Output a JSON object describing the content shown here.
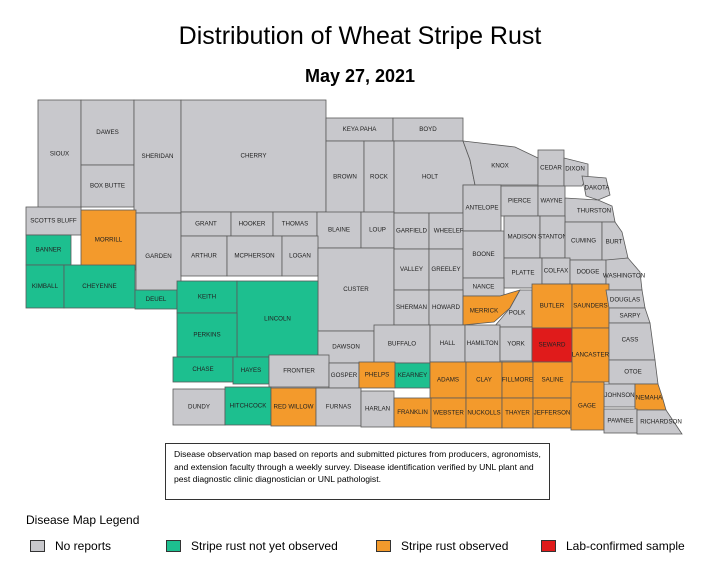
{
  "title": "Distribution of Wheat Stripe Rust",
  "date": "May 27, 2021",
  "note": "Disease observation map based on reports and submitted pictures from producers, agronomists, and extension faculty through a weekly survey. Disease identification verified by UNL plant and pest diagnostic clinic diagnostician or UNL pathologist.",
  "colors": {
    "no_reports": "#c8c8cc",
    "not_observed": "#1dbf8f",
    "observed": "#f39a2c",
    "lab_confirmed": "#e01b1b"
  },
  "legend": {
    "title": "Disease Map Legend",
    "items": [
      {
        "label": "No reports",
        "status": "no_reports"
      },
      {
        "label": "Stripe rust not yet observed",
        "status": "not_observed"
      },
      {
        "label": "Stripe rust observed",
        "status": "observed"
      },
      {
        "label": "Lab-confirmed sample",
        "status": "lab_confirmed"
      }
    ]
  },
  "counties": [
    {
      "name": "SIOUX",
      "status": "no_reports"
    },
    {
      "name": "DAWES",
      "status": "no_reports"
    },
    {
      "name": "BOX BUTTE",
      "status": "no_reports"
    },
    {
      "name": "SHERIDAN",
      "status": "no_reports"
    },
    {
      "name": "CHERRY",
      "status": "no_reports"
    },
    {
      "name": "KEYA PAHA",
      "status": "no_reports"
    },
    {
      "name": "BOYD",
      "status": "no_reports"
    },
    {
      "name": "BROWN",
      "status": "no_reports"
    },
    {
      "name": "ROCK",
      "status": "no_reports"
    },
    {
      "name": "HOLT",
      "status": "no_reports"
    },
    {
      "name": "KNOX",
      "status": "no_reports"
    },
    {
      "name": "CEDAR",
      "status": "no_reports"
    },
    {
      "name": "DIXON",
      "status": "no_reports"
    },
    {
      "name": "DAKOTA",
      "status": "no_reports"
    },
    {
      "name": "SCOTTS BLUFF",
      "status": "no_reports"
    },
    {
      "name": "MORRILL",
      "status": "observed"
    },
    {
      "name": "GARDEN",
      "status": "no_reports"
    },
    {
      "name": "GRANT",
      "status": "no_reports"
    },
    {
      "name": "HOOKER",
      "status": "no_reports"
    },
    {
      "name": "THOMAS",
      "status": "no_reports"
    },
    {
      "name": "BLAINE",
      "status": "no_reports"
    },
    {
      "name": "LOUP",
      "status": "no_reports"
    },
    {
      "name": "GARFIELD",
      "status": "no_reports"
    },
    {
      "name": "WHEELER",
      "status": "no_reports"
    },
    {
      "name": "ANTELOPE",
      "status": "no_reports"
    },
    {
      "name": "PIERCE",
      "status": "no_reports"
    },
    {
      "name": "WAYNE",
      "status": "no_reports"
    },
    {
      "name": "THURSTON",
      "status": "no_reports"
    },
    {
      "name": "BANNER",
      "status": "not_observed"
    },
    {
      "name": "KIMBALL",
      "status": "not_observed"
    },
    {
      "name": "CHEYENNE",
      "status": "not_observed"
    },
    {
      "name": "DEUEL",
      "status": "not_observed"
    },
    {
      "name": "ARTHUR",
      "status": "no_reports"
    },
    {
      "name": "MCPHERSON",
      "status": "no_reports"
    },
    {
      "name": "LOGAN",
      "status": "no_reports"
    },
    {
      "name": "CUSTER",
      "status": "no_reports"
    },
    {
      "name": "VALLEY",
      "status": "no_reports"
    },
    {
      "name": "GREELEY",
      "status": "no_reports"
    },
    {
      "name": "BOONE",
      "status": "no_reports"
    },
    {
      "name": "MADISON",
      "status": "no_reports"
    },
    {
      "name": "STANTON",
      "status": "no_reports"
    },
    {
      "name": "CUMING",
      "status": "no_reports"
    },
    {
      "name": "BURT",
      "status": "no_reports"
    },
    {
      "name": "PLATTE",
      "status": "no_reports"
    },
    {
      "name": "COLFAX",
      "status": "no_reports"
    },
    {
      "name": "DODGE",
      "status": "no_reports"
    },
    {
      "name": "WASHINGTON",
      "status": "no_reports"
    },
    {
      "name": "NANCE",
      "status": "no_reports"
    },
    {
      "name": "KEITH",
      "status": "not_observed"
    },
    {
      "name": "LINCOLN",
      "status": "not_observed"
    },
    {
      "name": "PERKINS",
      "status": "not_observed"
    },
    {
      "name": "SHERMAN",
      "status": "no_reports"
    },
    {
      "name": "HOWARD",
      "status": "no_reports"
    },
    {
      "name": "MERRICK",
      "status": "observed"
    },
    {
      "name": "POLK",
      "status": "no_reports"
    },
    {
      "name": "BUTLER",
      "status": "observed"
    },
    {
      "name": "SAUNDERS",
      "status": "observed"
    },
    {
      "name": "DOUGLAS",
      "status": "no_reports"
    },
    {
      "name": "SARPY",
      "status": "no_reports"
    },
    {
      "name": "DAWSON",
      "status": "no_reports"
    },
    {
      "name": "BUFFALO",
      "status": "no_reports"
    },
    {
      "name": "HALL",
      "status": "no_reports"
    },
    {
      "name": "HAMILTON",
      "status": "no_reports"
    },
    {
      "name": "YORK",
      "status": "no_reports"
    },
    {
      "name": "SEWARD",
      "status": "lab_confirmed"
    },
    {
      "name": "LANCASTER",
      "status": "observed"
    },
    {
      "name": "CASS",
      "status": "no_reports"
    },
    {
      "name": "CHASE",
      "status": "not_observed"
    },
    {
      "name": "HAYES",
      "status": "not_observed"
    },
    {
      "name": "FRONTIER",
      "status": "no_reports"
    },
    {
      "name": "GOSPER",
      "status": "no_reports"
    },
    {
      "name": "PHELPS",
      "status": "observed"
    },
    {
      "name": "KEARNEY",
      "status": "not_observed"
    },
    {
      "name": "ADAMS",
      "status": "observed"
    },
    {
      "name": "CLAY",
      "status": "observed"
    },
    {
      "name": "FILLMORE",
      "status": "observed"
    },
    {
      "name": "SALINE",
      "status": "observed"
    },
    {
      "name": "OTOE",
      "status": "no_reports"
    },
    {
      "name": "JOHNSON",
      "status": "no_reports"
    },
    {
      "name": "NEMAHA",
      "status": "observed"
    },
    {
      "name": "DUNDY",
      "status": "no_reports"
    },
    {
      "name": "HITCHCOCK",
      "status": "not_observed"
    },
    {
      "name": "RED WILLOW",
      "status": "observed"
    },
    {
      "name": "FURNAS",
      "status": "no_reports"
    },
    {
      "name": "HARLAN",
      "status": "no_reports"
    },
    {
      "name": "FRANKLIN",
      "status": "observed"
    },
    {
      "name": "WEBSTER",
      "status": "observed"
    },
    {
      "name": "NUCKOLLS",
      "status": "observed"
    },
    {
      "name": "THAYER",
      "status": "observed"
    },
    {
      "name": "JEFFERSON",
      "status": "observed"
    },
    {
      "name": "GAGE",
      "status": "observed"
    },
    {
      "name": "PAWNEE",
      "status": "no_reports"
    },
    {
      "name": "RICHARDSON",
      "status": "no_reports"
    }
  ]
}
